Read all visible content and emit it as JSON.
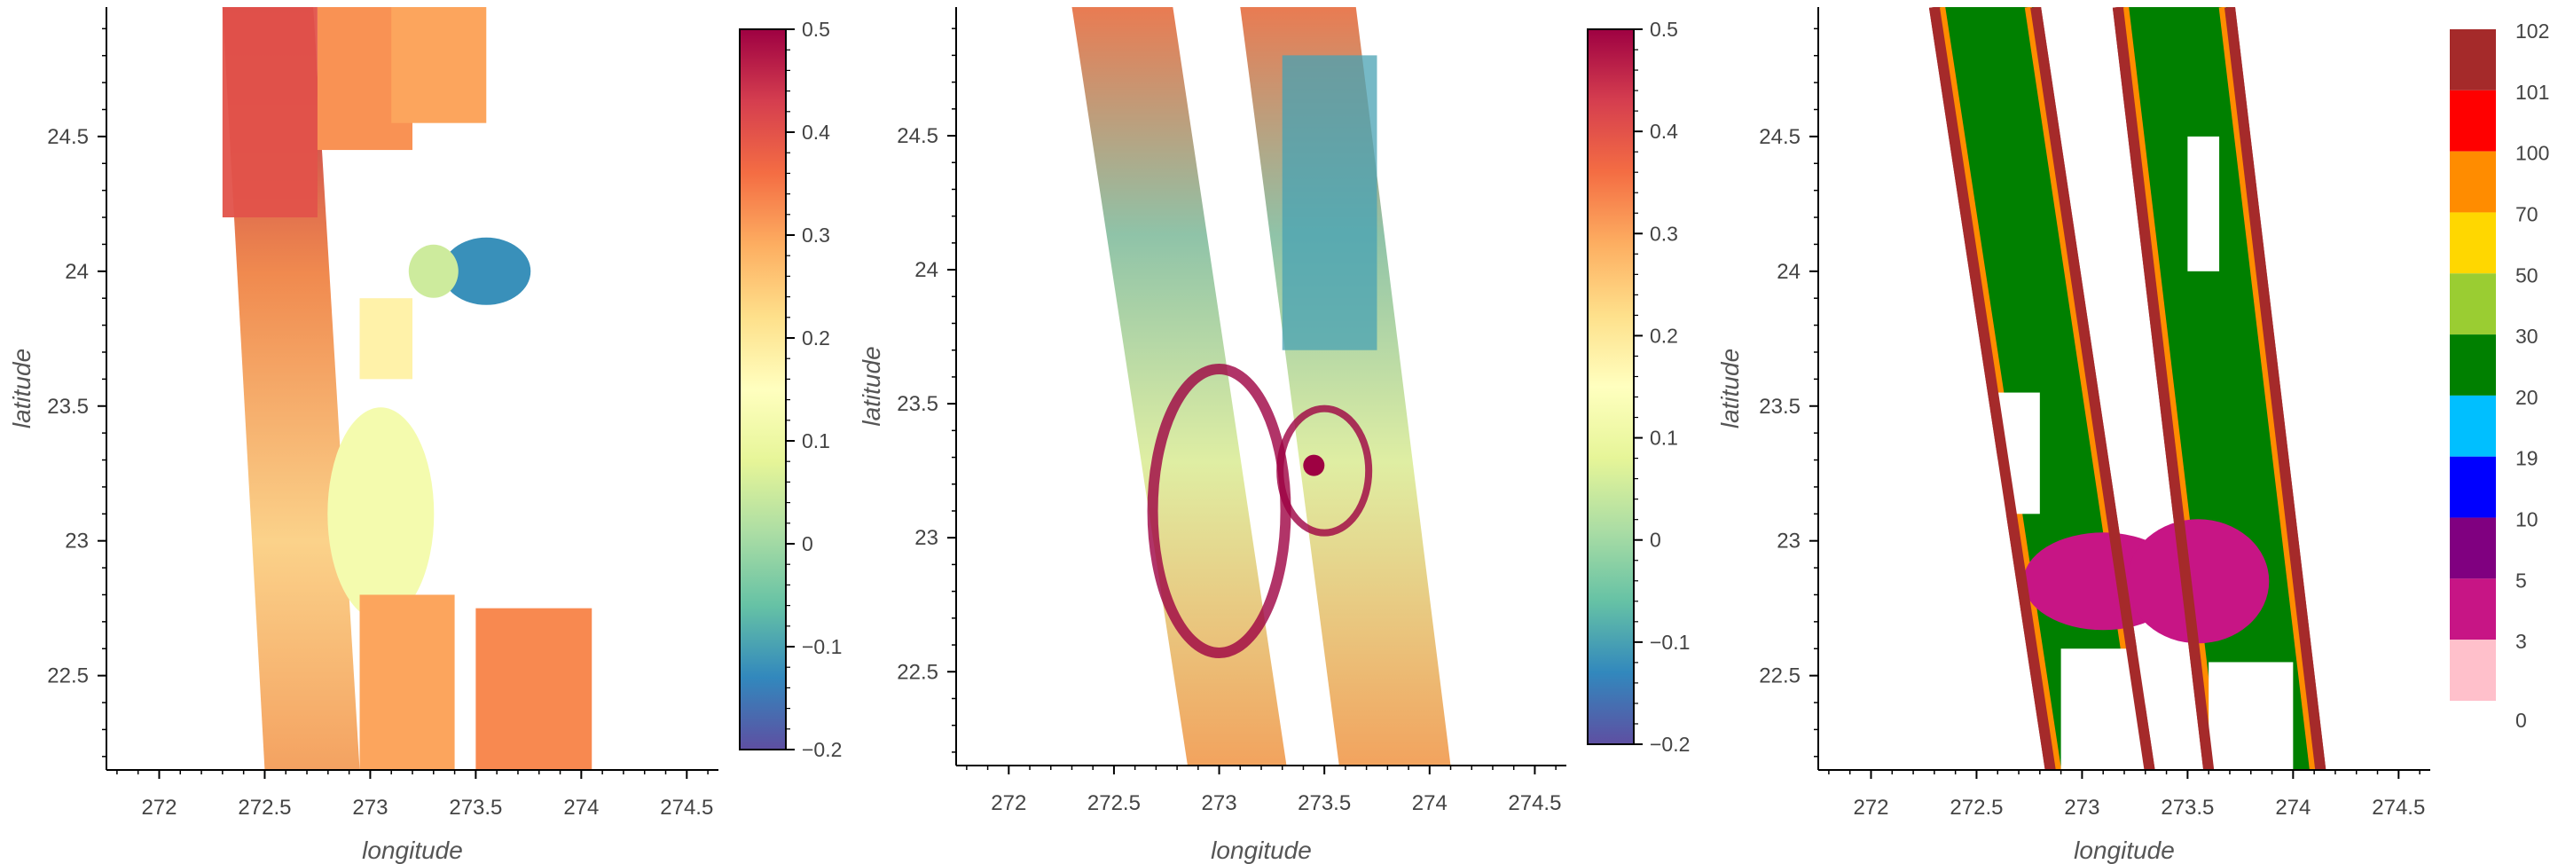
{
  "chart_data": [
    {
      "type": "heatmap",
      "title": "",
      "xlabel": "longitude",
      "ylabel": "latitude",
      "xlim": [
        271.75,
        274.65
      ],
      "ylim": [
        22.15,
        24.98
      ],
      "xticks": [
        272,
        272.5,
        273,
        273.5,
        274,
        274.5
      ],
      "xtick_labels": [
        "272",
        "272.5",
        "273",
        "273.5",
        "274",
        "274.5"
      ],
      "yticks": [
        22.5,
        23,
        23.5,
        24,
        24.5
      ],
      "ytick_labels": [
        "22.5",
        "23",
        "23.5",
        "24",
        "24.5"
      ],
      "colorbar": {
        "colormap": "Spectral_r",
        "range": [
          -0.2,
          0.5
        ],
        "ticks": [
          -0.2,
          -0.1,
          0,
          0.1,
          0.2,
          0.3,
          0.4,
          0.5
        ],
        "tick_labels": [
          "−0.2",
          "−0.1",
          "0",
          "0.1",
          "0.2",
          "0.3",
          "0.4",
          "0.5"
        ]
      },
      "regions": [
        {
          "name": "upper-left-swath-top",
          "value": 0.4
        },
        {
          "name": "upper-right-swath-top",
          "value": 0.32
        },
        {
          "name": "eye-region",
          "value": -0.12
        },
        {
          "name": "central-band",
          "value": 0.12
        },
        {
          "name": "lower-swaths",
          "value": 0.3
        }
      ]
    },
    {
      "type": "heatmap",
      "title": "",
      "xlabel": "longitude",
      "ylabel": "latitude",
      "xlim": [
        271.75,
        274.65
      ],
      "ylim": [
        22.15,
        24.98
      ],
      "xticks": [
        272,
        272.5,
        273,
        273.5,
        274,
        274.5
      ],
      "xtick_labels": [
        "272",
        "272.5",
        "273",
        "273.5",
        "274",
        "274.5"
      ],
      "yticks": [
        22.5,
        23,
        23.5,
        24,
        24.5
      ],
      "ytick_labels": [
        "22.5",
        "23",
        "23.5",
        "24",
        "24.5"
      ],
      "colorbar": {
        "colormap": "Spectral_r",
        "range": [
          -0.2,
          0.5
        ],
        "ticks": [
          -0.2,
          -0.1,
          0,
          0.1,
          0.2,
          0.3,
          0.4,
          0.5
        ],
        "tick_labels": [
          "−0.2",
          "−0.1",
          "0",
          "0.1",
          "0.2",
          "0.3",
          "0.4",
          "0.5"
        ]
      },
      "regions": [
        {
          "name": "left-swath",
          "value": 0.3
        },
        {
          "name": "right-swath-north",
          "value": -0.1
        },
        {
          "name": "storm-center",
          "value": 0.5
        },
        {
          "name": "rain-bands",
          "value": 0.5
        }
      ]
    },
    {
      "type": "heatmap",
      "title": "",
      "xlabel": "longitude",
      "ylabel": "latitude",
      "xlim": [
        271.75,
        274.65
      ],
      "ylim": [
        22.15,
        24.98
      ],
      "xticks": [
        272,
        272.5,
        273,
        273.5,
        274,
        274.5
      ],
      "xtick_labels": [
        "272",
        "272.5",
        "273",
        "273.5",
        "274",
        "274.5"
      ],
      "yticks": [
        22.5,
        23,
        23.5,
        24,
        24.5
      ],
      "ytick_labels": [
        "22.5",
        "23",
        "23.5",
        "24",
        "24.5"
      ],
      "legend": {
        "type": "categorical",
        "placement": "right",
        "categories": [
          {
            "label": "102",
            "color": "#a52a2a"
          },
          {
            "label": "101",
            "color": "#ff0000"
          },
          {
            "label": "100",
            "color": "#ff8c00"
          },
          {
            "label": "70",
            "color": "#ffd700"
          },
          {
            "label": "50",
            "color": "#9acd32"
          },
          {
            "label": "30",
            "color": "#008000"
          },
          {
            "label": "20",
            "color": "#00bfff"
          },
          {
            "label": "19",
            "color": "#0000ff"
          },
          {
            "label": "10",
            "color": "#800080"
          },
          {
            "label": "5",
            "color": "#c71585"
          },
          {
            "label": "3",
            "color": "#ffc0cb"
          },
          {
            "label": "0",
            "color": "#ffffff"
          }
        ]
      }
    }
  ]
}
